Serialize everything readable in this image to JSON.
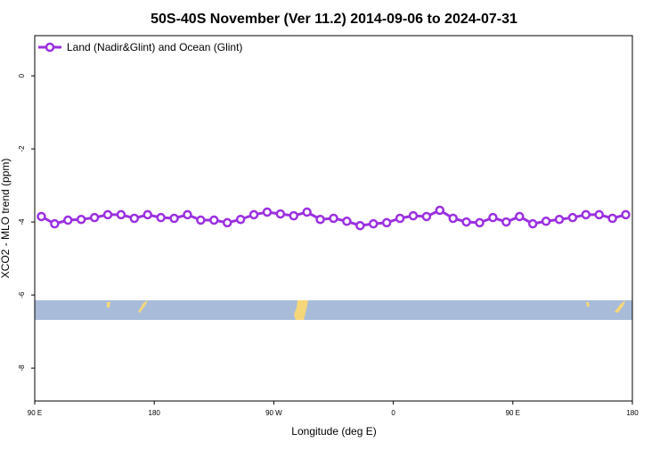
{
  "chart_data": {
    "type": "line",
    "title": "50S-40S November (Ver 11.2)   2014-09-06 to 2024-07-31",
    "x_label": "Longitude (deg E)",
    "y_label": "XCO2 - MLO trend (ppm)",
    "x": [
      95,
      105,
      115,
      125,
      135,
      145,
      155,
      165,
      175,
      185,
      195,
      205,
      215,
      225,
      235,
      245,
      255,
      265,
      275,
      285,
      295,
      305,
      315,
      325,
      335,
      345,
      355,
      365,
      375,
      385,
      395,
      405,
      415,
      425,
      435,
      445,
      455,
      465,
      475,
      485,
      495,
      505,
      515,
      525,
      535
    ],
    "series": [
      {
        "name": "Land (Nadir&Glint) and Ocean (Glint)",
        "color": "#9b30e0",
        "values": [
          -3.85,
          -4.05,
          -3.95,
          -3.93,
          -3.88,
          -3.8,
          -3.8,
          -3.9,
          -3.8,
          -3.88,
          -3.9,
          -3.8,
          -3.95,
          -3.95,
          -4.02,
          -3.93,
          -3.8,
          -3.73,
          -3.78,
          -3.83,
          -3.73,
          -3.93,
          -3.9,
          -3.98,
          -4.1,
          -4.05,
          -4.02,
          -3.9,
          -3.83,
          -3.85,
          -3.68,
          -3.9,
          -4.0,
          -4.02,
          -3.88,
          -4.0,
          -3.85,
          -4.05,
          -3.98,
          -3.93,
          -3.88,
          -3.8,
          -3.8,
          -3.9,
          -3.8
        ]
      }
    ],
    "xlim": [
      90,
      540
    ],
    "xticks": [
      {
        "value": 90,
        "label": "90 E"
      },
      180,
      {
        "value": 270,
        "label": "90 W"
      },
      {
        "value": 360,
        "label": "0"
      },
      {
        "value": 450,
        "label": "90 E"
      },
      {
        "value": 540,
        "label": "180"
      }
    ],
    "ylim": [
      -8.9,
      1.1
    ],
    "yticks": [
      0,
      -2,
      -4,
      -6,
      -8
    ],
    "legend": "top-left"
  }
}
